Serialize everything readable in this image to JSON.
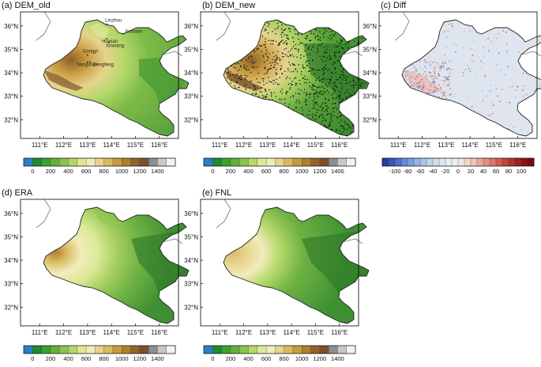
{
  "chart_data": [
    {
      "id": "dem_old",
      "type": "heatmap",
      "title": "(a) DEM_old",
      "field": "elevation",
      "xlim": [
        110.2,
        116.8
      ],
      "ylim": [
        31.2,
        36.6
      ],
      "xticks": [
        111,
        112,
        113,
        114,
        115,
        116
      ],
      "xtick_labels": [
        "111°E",
        "112°E",
        "113°E",
        "114°E",
        "115°E",
        "116°E"
      ],
      "yticks": [
        32,
        33,
        34,
        35,
        36
      ],
      "ytick_labels": [
        "32°N",
        "33°N",
        "34°N",
        "35°N",
        "36°N"
      ],
      "colorbar": "elevation",
      "cities": [
        {
          "name": "Linzhou",
          "lon": 113.8,
          "lat": 36.07
        },
        {
          "name": "Xunxian",
          "lon": 114.5,
          "lat": 35.67
        },
        {
          "name": "Huixian",
          "lon": 113.8,
          "lat": 35.46
        },
        {
          "name": "Xinxiang",
          "lon": 113.9,
          "lat": 35.3
        },
        {
          "name": "Gongyi",
          "lon": 113.0,
          "lat": 34.76
        },
        {
          "name": "Songshan",
          "lon": 113.0,
          "lat": 34.45
        },
        {
          "name": "Dengfeng",
          "lon": 113.1,
          "lat": 34.46
        }
      ]
    },
    {
      "id": "dem_new",
      "type": "heatmap",
      "title": "(b) DEM_new",
      "field": "elevation",
      "xlim": [
        110.2,
        116.8
      ],
      "ylim": [
        31.2,
        36.6
      ],
      "xticks": [
        111,
        112,
        113,
        114,
        115,
        116
      ],
      "xtick_labels": [
        "111°E",
        "112°E",
        "113°E",
        "114°E",
        "115°E",
        "116°E"
      ],
      "yticks": [
        32,
        33,
        34,
        35,
        36
      ],
      "ytick_labels": [
        "32°N",
        "33°N",
        "34°N",
        "35°N",
        "36°N"
      ],
      "colorbar": "elevation",
      "stations_overlay": true
    },
    {
      "id": "diff",
      "type": "heatmap",
      "title": "(c) Diff",
      "field": "difference",
      "xlim": [
        110.2,
        116.8
      ],
      "ylim": [
        31.2,
        36.6
      ],
      "xticks": [
        111,
        112,
        113,
        114,
        115,
        116
      ],
      "xtick_labels": [
        "111°E",
        "112°E",
        "113°E",
        "114°E",
        "115°E",
        "116°E"
      ],
      "yticks": [
        32,
        33,
        34,
        35,
        36
      ],
      "ytick_labels": [
        "32°N",
        "33°N",
        "34°N",
        "35°N",
        "36°N"
      ],
      "colorbar": "difference"
    },
    {
      "id": "era",
      "type": "heatmap",
      "title": "(d) ERA",
      "field": "elevation",
      "xlim": [
        110.2,
        116.8
      ],
      "ylim": [
        31.2,
        36.6
      ],
      "xticks": [
        111,
        112,
        113,
        114,
        115,
        116
      ],
      "xtick_labels": [
        "111°E",
        "112°E",
        "113°E",
        "114°E",
        "115°E",
        "116°E"
      ],
      "yticks": [
        32,
        33,
        34,
        35,
        36
      ],
      "ytick_labels": [
        "32°N",
        "33°N",
        "34°N",
        "35°N",
        "36°N"
      ],
      "colorbar": "elevation"
    },
    {
      "id": "fnl",
      "type": "heatmap",
      "title": "(e) FNL",
      "field": "elevation",
      "xlim": [
        110.2,
        116.8
      ],
      "ylim": [
        31.2,
        36.6
      ],
      "xticks": [
        111,
        112,
        113,
        114,
        115,
        116
      ],
      "xtick_labels": [
        "111°E",
        "112°E",
        "113°E",
        "114°E",
        "115°E",
        "116°E"
      ],
      "yticks": [
        32,
        33,
        34,
        35,
        36
      ],
      "ytick_labels": [
        "32°N",
        "33°N",
        "34°N",
        "35°N",
        "36°N"
      ],
      "colorbar": "elevation"
    }
  ],
  "colorbars": {
    "elevation": {
      "levels": [
        0,
        100,
        200,
        300,
        400,
        500,
        600,
        700,
        800,
        900,
        1000,
        1100,
        1200,
        1300,
        1400,
        1500
      ],
      "colors": [
        "#2a7fc4",
        "#1f8a2e",
        "#3f9f31",
        "#62b03a",
        "#8cc44d",
        "#b5d86a",
        "#dcea97",
        "#f1ecbb",
        "#e7d38d",
        "#d9ba63",
        "#c79b3f",
        "#b07e2d",
        "#95632a",
        "#7d4f2a",
        "#8e8e8e",
        "#c8c8c8",
        "#f2f2f2"
      ],
      "tick_labels": [
        "0",
        "200",
        "400",
        "600",
        "800",
        "1000",
        "1200",
        "1400"
      ],
      "tick_values": [
        0,
        200,
        400,
        600,
        800,
        1000,
        1200,
        1400
      ]
    },
    "difference": {
      "levels": [
        -110,
        -100,
        -90,
        -80,
        -70,
        -60,
        -50,
        -40,
        -30,
        -20,
        -10,
        0,
        10,
        20,
        30,
        40,
        50,
        60,
        70,
        80,
        90,
        100,
        110
      ],
      "colors": [
        "#2b3e9b",
        "#3457b8",
        "#4a70cc",
        "#6189d8",
        "#7a9fe0",
        "#93b3e6",
        "#aac4ea",
        "#bfd3ee",
        "#d1def1",
        "#dfe7f2",
        "#e9eef4",
        "#f0f0f0",
        "#f4e6e2",
        "#f3d6cf",
        "#efc3b8",
        "#e9aa9c",
        "#e39080",
        "#db7766",
        "#d05e4e",
        "#c4463a",
        "#b5302a",
        "#a01d1f",
        "#8a1018",
        "#750a12"
      ],
      "tick_labels": [
        "-100",
        "-80",
        "-60",
        "-40",
        "-20",
        "0",
        "20",
        "40",
        "60",
        "80",
        "100"
      ],
      "tick_values": [
        -100,
        -80,
        -60,
        -40,
        -20,
        0,
        20,
        40,
        60,
        80,
        100
      ]
    }
  }
}
